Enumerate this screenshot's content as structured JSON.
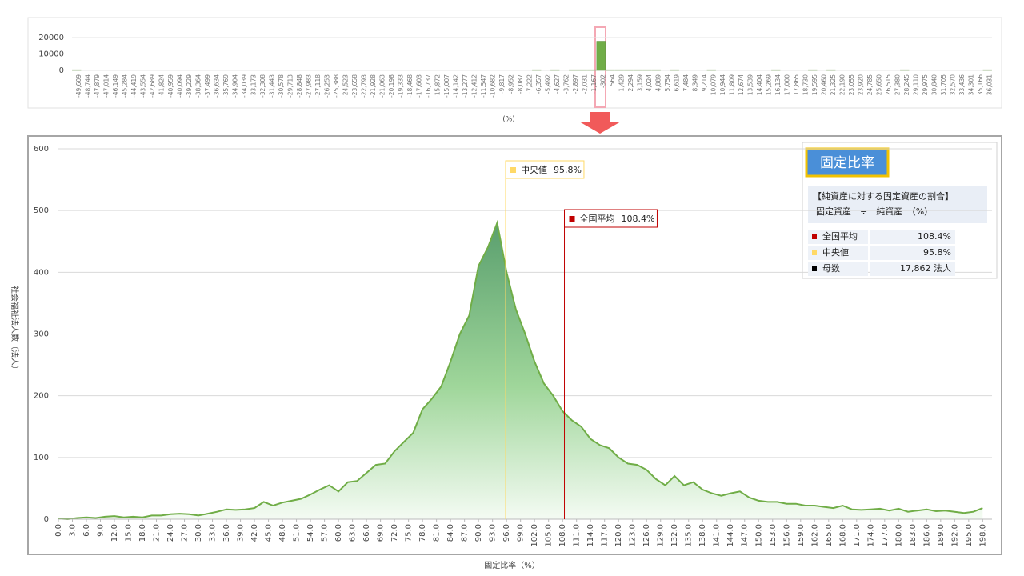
{
  "chart_data": [
    {
      "type": "bar",
      "categories": [
        "-49,609",
        "-48,744",
        "-47,879",
        "-47,014",
        "-46,149",
        "-45,284",
        "-44,419",
        "-43,554",
        "-42,689",
        "-41,824",
        "-40,959",
        "-40,094",
        "-39,229",
        "-38,364",
        "-37,499",
        "-36,634",
        "-35,769",
        "-34,904",
        "-34,039",
        "-33,173",
        "-32,308",
        "-31,443",
        "-30,578",
        "-29,713",
        "-28,848",
        "-27,983",
        "-27,118",
        "-26,253",
        "-25,388",
        "-24,523",
        "-23,658",
        "-22,793",
        "-21,928",
        "-21,063",
        "-20,198",
        "-19,333",
        "-18,468",
        "-17,603",
        "-16,737",
        "-15,872",
        "-15,007",
        "-14,142",
        "-13,277",
        "-12,412",
        "-11,547",
        "-10,682",
        "-9,817",
        "-8,952",
        "-8,087",
        "-7,222",
        "-6,357",
        "-5,492",
        "-4,627",
        "-3,762",
        "-2,897",
        "-2,031",
        "-1,167",
        "-302",
        "564",
        "1,429",
        "2,294",
        "3,159",
        "4,024",
        "4,889",
        "5,754",
        "6,619",
        "7,484",
        "8,349",
        "9,214",
        "10,079",
        "10,944",
        "11,809",
        "12,674",
        "13,539",
        "14,404",
        "15,269",
        "16,134",
        "17,000",
        "17,865",
        "18,730",
        "19,595",
        "20,460",
        "21,325",
        "22,190",
        "23,055",
        "23,920",
        "24,785",
        "25,650",
        "26,515",
        "27,380",
        "28,245",
        "29,110",
        "29,975",
        "30,840",
        "31,705",
        "32,570",
        "33,436",
        "34,301",
        "35,166",
        "36,031"
      ],
      "values": [
        400,
        0,
        0,
        0,
        0,
        0,
        0,
        0,
        0,
        0,
        0,
        0,
        0,
        0,
        0,
        0,
        0,
        0,
        0,
        0,
        0,
        0,
        0,
        0,
        0,
        0,
        0,
        0,
        0,
        0,
        0,
        0,
        0,
        0,
        0,
        0,
        0,
        0,
        0,
        0,
        0,
        0,
        0,
        0,
        0,
        0,
        0,
        0,
        0,
        0,
        400,
        0,
        400,
        0,
        400,
        400,
        400,
        17800,
        400,
        400,
        400,
        400,
        400,
        400,
        0,
        400,
        0,
        0,
        0,
        400,
        0,
        0,
        0,
        0,
        0,
        0,
        400,
        0,
        0,
        0,
        400,
        0,
        400,
        0,
        0,
        0,
        0,
        0,
        0,
        0,
        400,
        0,
        0,
        0,
        0,
        0,
        0,
        0,
        0,
        400
      ],
      "color": "#70ad47",
      "ylim": [
        0,
        20000
      ],
      "yticks": [
        0,
        10000,
        20000
      ],
      "xlabel": "(%)"
    },
    {
      "type": "area",
      "xlabel": "固定比率（%）",
      "ylabel": "社会福祉法人数（法人）",
      "x": [
        0,
        2,
        4,
        6,
        8,
        10,
        12,
        14,
        16,
        18,
        20,
        22,
        24,
        26,
        28,
        30,
        32,
        34,
        36,
        38,
        40,
        42,
        44,
        46,
        48,
        50,
        52,
        54,
        56,
        58,
        60,
        62,
        64,
        66,
        68,
        70,
        72,
        74,
        76,
        78,
        80,
        82,
        84,
        86,
        88,
        90,
        92,
        94,
        96,
        98,
        100,
        102,
        104,
        106,
        108,
        110,
        112,
        114,
        116,
        118,
        120,
        122,
        124,
        126,
        128,
        130,
        132,
        134,
        136,
        138,
        140,
        142,
        144,
        146,
        148,
        150,
        152,
        154,
        156,
        158,
        160,
        162,
        164,
        166,
        168,
        170,
        172,
        174,
        176,
        178,
        180,
        182,
        184,
        186,
        188,
        190,
        192,
        194,
        196,
        198
      ],
      "values": [
        1,
        0,
        2,
        3,
        2,
        4,
        5,
        3,
        4,
        3,
        6,
        6,
        8,
        9,
        8,
        6,
        9,
        12,
        16,
        15,
        16,
        18,
        28,
        22,
        27,
        30,
        33,
        40,
        48,
        55,
        45,
        60,
        62,
        75,
        88,
        90,
        110,
        125,
        140,
        178,
        195,
        215,
        255,
        300,
        330,
        410,
        440,
        480,
        400,
        340,
        300,
        255,
        220,
        200,
        175,
        160,
        150,
        130,
        120,
        115,
        100,
        90,
        88,
        80,
        65,
        55,
        70,
        55,
        60,
        48,
        42,
        38,
        42,
        45,
        35,
        30,
        28,
        28,
        25,
        25,
        22,
        22,
        20,
        18,
        22,
        16,
        15,
        16,
        17,
        14,
        17,
        12,
        14,
        16,
        13,
        14,
        12,
        10,
        12,
        18
      ],
      "color": "#70ad47",
      "xlim": [
        0,
        200
      ],
      "ylim": [
        0,
        600
      ],
      "yticks": [
        0,
        100,
        200,
        300,
        400,
        500,
        600
      ],
      "xticks": [
        {
          "value": 0,
          "label": "0.0"
        },
        {
          "value": 3,
          "label": "3.0"
        },
        {
          "value": 6,
          "label": "6.0"
        },
        {
          "value": 9,
          "label": "9.0"
        },
        {
          "value": 12,
          "label": "12.0"
        },
        {
          "value": 15,
          "label": "15.0"
        },
        {
          "value": 18,
          "label": "18.0"
        },
        {
          "value": 21,
          "label": "21.0"
        },
        {
          "value": 24,
          "label": "24.0"
        },
        {
          "value": 27,
          "label": "27.0"
        },
        {
          "value": 30,
          "label": "30.0"
        },
        {
          "value": 33,
          "label": "33.0"
        },
        {
          "value": 36,
          "label": "36.0"
        },
        {
          "value": 39,
          "label": "39.0"
        },
        {
          "value": 42,
          "label": "42.0"
        },
        {
          "value": 45,
          "label": "45.0"
        },
        {
          "value": 48,
          "label": "48.0"
        },
        {
          "value": 51,
          "label": "51.0"
        },
        {
          "value": 54,
          "label": "54.0"
        },
        {
          "value": 57,
          "label": "57.0"
        },
        {
          "value": 60,
          "label": "60.0"
        },
        {
          "value": 63,
          "label": "63.0"
        },
        {
          "value": 66,
          "label": "66.0"
        },
        {
          "value": 69,
          "label": "69.0"
        },
        {
          "value": 72,
          "label": "72.0"
        },
        {
          "value": 75,
          "label": "75.0"
        },
        {
          "value": 78,
          "label": "78.0"
        },
        {
          "value": 81,
          "label": "81.0"
        },
        {
          "value": 84,
          "label": "84.0"
        },
        {
          "value": 87,
          "label": "87.0"
        },
        {
          "value": 90,
          "label": "90.0"
        },
        {
          "value": 93,
          "label": "93.0"
        },
        {
          "value": 96,
          "label": "96.0"
        },
        {
          "value": 99,
          "label": "99.0"
        },
        {
          "value": 102,
          "label": "102.0"
        },
        {
          "value": 105,
          "label": "105.0"
        },
        {
          "value": 108,
          "label": "108.0"
        },
        {
          "value": 111,
          "label": "111.0"
        },
        {
          "value": 114,
          "label": "114.0"
        },
        {
          "value": 117,
          "label": "117.0"
        },
        {
          "value": 120,
          "label": "120.0"
        },
        {
          "value": 123,
          "label": "123.0"
        },
        {
          "value": 126,
          "label": "126.0"
        },
        {
          "value": 129,
          "label": "129.0"
        },
        {
          "value": 132,
          "label": "132.0"
        },
        {
          "value": 135,
          "label": "135.0"
        },
        {
          "value": 138,
          "label": "138.0"
        },
        {
          "value": 141,
          "label": "141.0"
        },
        {
          "value": 144,
          "label": "144.0"
        },
        {
          "value": 147,
          "label": "147.0"
        },
        {
          "value": 150,
          "label": "150.0"
        },
        {
          "value": 153,
          "label": "153.0"
        },
        {
          "value": 156,
          "label": "156.0"
        },
        {
          "value": 159,
          "label": "159.0"
        },
        {
          "value": 162,
          "label": "162.0"
        },
        {
          "value": 165,
          "label": "165.0"
        },
        {
          "value": 168,
          "label": "168.0"
        },
        {
          "value": 171,
          "label": "171.0"
        },
        {
          "value": 174,
          "label": "174.0"
        },
        {
          "value": 177,
          "label": "177.0"
        },
        {
          "value": 180,
          "label": "180.0"
        },
        {
          "value": 183,
          "label": "183.0"
        },
        {
          "value": 186,
          "label": "186.0"
        },
        {
          "value": 189,
          "label": "189.0"
        },
        {
          "value": 192,
          "label": "192.0"
        },
        {
          "value": 195,
          "label": "195.0"
        },
        {
          "value": 198,
          "label": "198.0"
        }
      ],
      "grid": true,
      "annotations": [
        {
          "name": "中央値",
          "value": 95.8,
          "value_label": "95.8%",
          "color": "#ffd966"
        },
        {
          "name": "全国平均",
          "value": 108.4,
          "value_label": "108.4%",
          "color": "#c00000"
        }
      ]
    }
  ],
  "info_box": {
    "title": "固定比率",
    "description": [
      "【純資産に対する固定資産の割合】",
      "固定資産　÷　純資産　（%）"
    ],
    "rows": [
      {
        "name": "全国平均",
        "value": "108.4%",
        "color": "#c00000"
      },
      {
        "name": "中央値",
        "value": "95.8%",
        "color": "#ffd966"
      },
      {
        "name": "母数",
        "value": "17,862 法人",
        "color": "#000000"
      }
    ]
  }
}
